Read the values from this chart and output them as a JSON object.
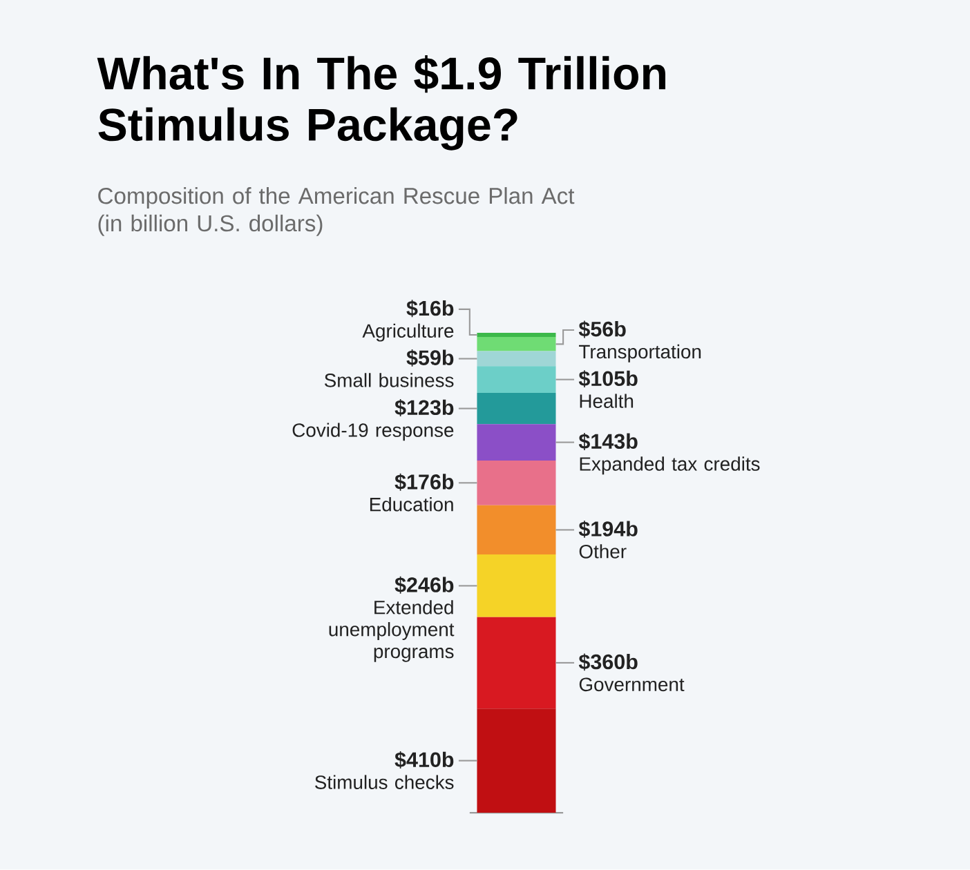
{
  "chart_data": {
    "type": "bar",
    "stacked": true,
    "title": "What's In The $1.9 Trillion Stimulus Package?",
    "subtitle": "Composition of the American Rescue Plan Act (in billion U.S. dollars)",
    "categories": [
      null
    ],
    "series": [
      {
        "name": "Stimulus checks",
        "color": "#c00f12",
        "values": [
          410
        ],
        "value_labels": [
          "$410b"
        ]
      },
      {
        "name": "Government",
        "color": "#d81921",
        "values": [
          360
        ],
        "value_labels": [
          "$360b"
        ]
      },
      {
        "name": "Extended unemployment programs",
        "color": "#f5d327",
        "values": [
          246
        ],
        "value_labels": [
          "$246b"
        ]
      },
      {
        "name": "Other",
        "color": "#f28e2b",
        "values": [
          194
        ],
        "value_labels": [
          "$194b"
        ]
      },
      {
        "name": "Education",
        "color": "#e8708a",
        "values": [
          176
        ],
        "value_labels": [
          "$176b"
        ]
      },
      {
        "name": "Expanded tax credits",
        "color": "#8b4fc7",
        "values": [
          143
        ],
        "value_labels": [
          "$143b"
        ]
      },
      {
        "name": "Covid-19 response",
        "color": "#239a9a",
        "values": [
          123
        ],
        "value_labels": [
          "$123b"
        ]
      },
      {
        "name": "Health",
        "color": "#6ccfc8",
        "values": [
          105
        ],
        "value_labels": [
          "$105b"
        ]
      },
      {
        "name": "Small business",
        "color": "#9fd6d6",
        "values": [
          59
        ],
        "value_labels": [
          "$59b"
        ]
      },
      {
        "name": "Transportation",
        "color": "#6fdc74",
        "values": [
          56
        ],
        "value_labels": [
          "$56b"
        ]
      },
      {
        "name": "Agriculture",
        "color": "#3cb84a",
        "values": [
          16
        ],
        "value_labels": [
          "$16b"
        ]
      }
    ]
  }
}
